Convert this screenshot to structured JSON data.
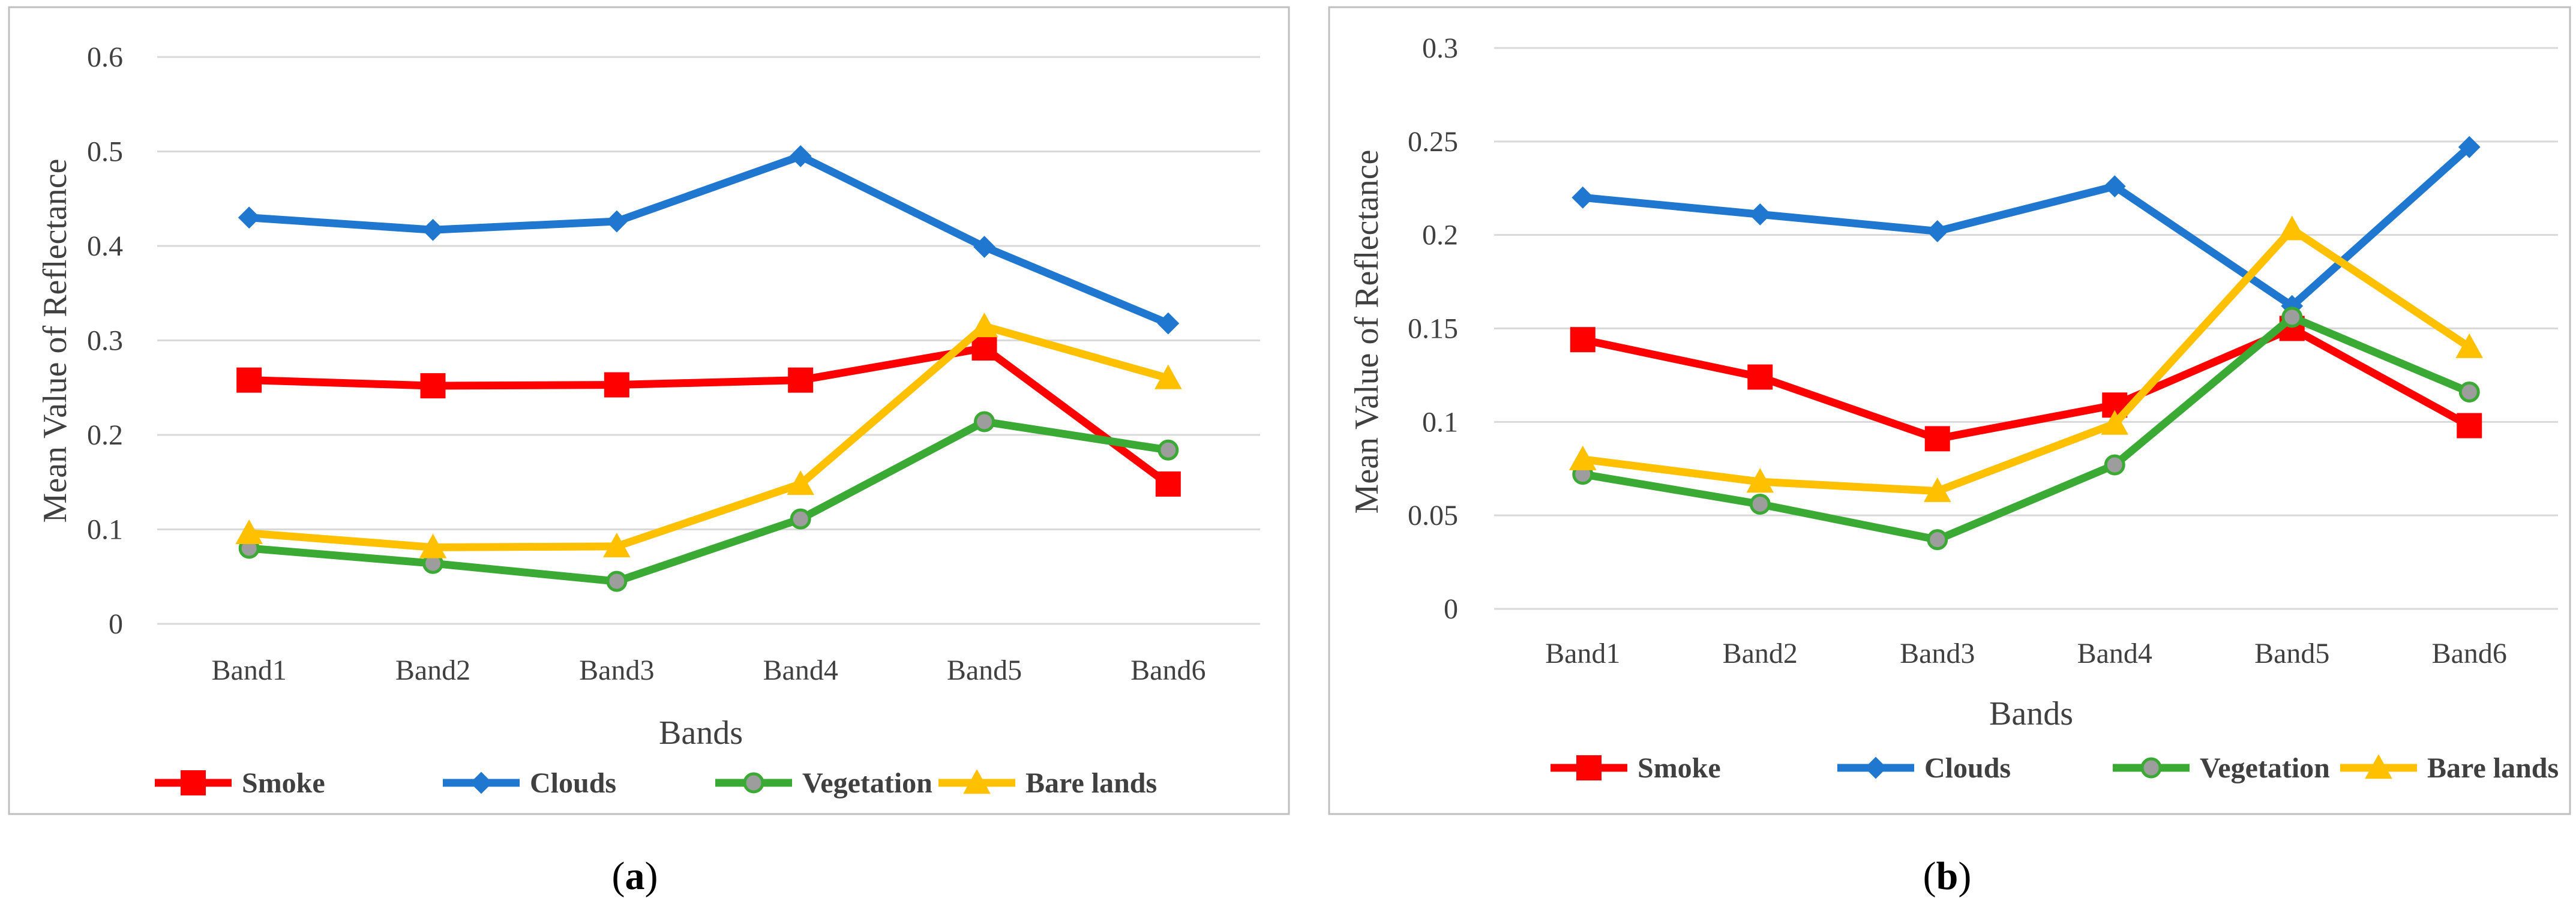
{
  "colors": {
    "Smoke": "#ff0000",
    "Clouds": "#1f77d0",
    "Vegetation": "#3aaa35",
    "Bare lands": "#ffc000",
    "grid": "#d9d9d9",
    "frame": "#bfbfbf"
  },
  "chart_data": [
    {
      "type": "line",
      "panel": "a",
      "categories": [
        "Band1",
        "Band2",
        "Band3",
        "Band4",
        "Band5",
        "Band6"
      ],
      "xlabel": "Bands",
      "ylabel": "Mean Value of Reflectance",
      "ylim": [
        0,
        0.6
      ],
      "yticks": [
        "0",
        "0.1",
        "0.2",
        "0.3",
        "0.4",
        "0.5",
        "0.6"
      ],
      "grid": true,
      "legend_position": "bottom",
      "series": [
        {
          "name": "Smoke",
          "marker": "square",
          "values": [
            0.258,
            0.252,
            0.253,
            0.258,
            0.292,
            0.148
          ]
        },
        {
          "name": "Clouds",
          "marker": "diamond",
          "values": [
            0.43,
            0.417,
            0.426,
            0.495,
            0.399,
            0.318
          ]
        },
        {
          "name": "Vegetation",
          "marker": "circle",
          "values": [
            0.08,
            0.064,
            0.045,
            0.111,
            0.214,
            0.184
          ]
        },
        {
          "name": "Bare lands",
          "marker": "triangle",
          "values": [
            0.096,
            0.081,
            0.082,
            0.148,
            0.315,
            0.26
          ]
        }
      ]
    },
    {
      "type": "line",
      "panel": "b",
      "categories": [
        "Band1",
        "Band2",
        "Band3",
        "Band4",
        "Band5",
        "Band6"
      ],
      "xlabel": "Bands",
      "ylabel": "Mean Value of Reflectance",
      "ylim": [
        0,
        0.3
      ],
      "yticks": [
        "0",
        "0.05",
        "0.1",
        "0.15",
        "0.2",
        "0.25",
        "0.3"
      ],
      "grid": true,
      "legend_position": "bottom",
      "series": [
        {
          "name": "Smoke",
          "marker": "square",
          "values": [
            0.144,
            0.124,
            0.091,
            0.109,
            0.15,
            0.098
          ]
        },
        {
          "name": "Clouds",
          "marker": "diamond",
          "values": [
            0.22,
            0.211,
            0.202,
            0.226,
            0.162,
            0.247
          ]
        },
        {
          "name": "Vegetation",
          "marker": "circle",
          "values": [
            0.072,
            0.056,
            0.037,
            0.077,
            0.156,
            0.116
          ]
        },
        {
          "name": "Bare lands",
          "marker": "triangle",
          "values": [
            0.08,
            0.068,
            0.063,
            0.099,
            0.203,
            0.14
          ]
        }
      ]
    }
  ],
  "panel_labels": [
    {
      "open": "(",
      "letter": "a",
      "close": ")"
    },
    {
      "open": "(",
      "letter": "b",
      "close": ")"
    }
  ]
}
